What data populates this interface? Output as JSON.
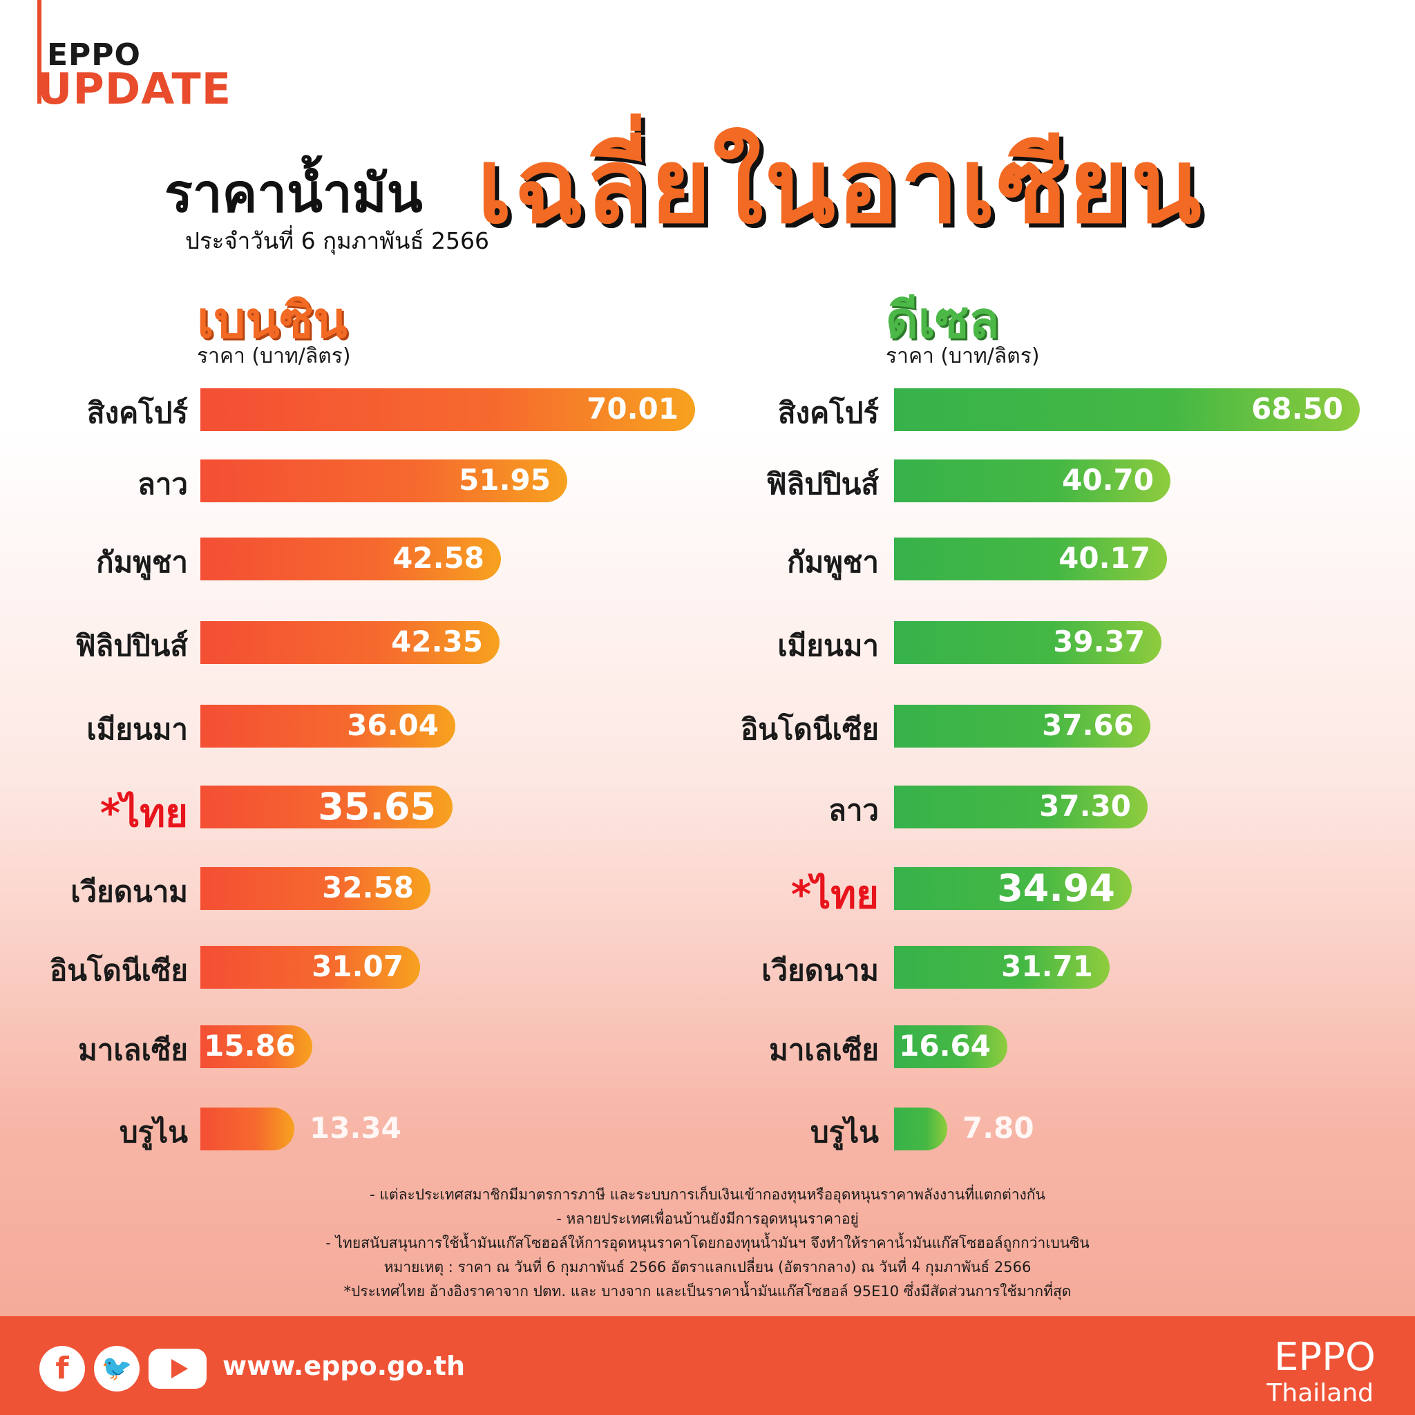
{
  "brand": {
    "eppo": "EPPO",
    "update": "UPDATE"
  },
  "header": {
    "title": "ราคาน้ำมัน",
    "date": "ประจำวันที่ 6 กุมภาพันธ์ 2566",
    "highlight": "เฉลี่ยในอาเซียน"
  },
  "colors": {
    "benzin": "#f36a24",
    "diesel": "#4cb848",
    "thai_label": "#e8141c",
    "footer": "#ef5336"
  },
  "chart_data": [
    {
      "type": "bar",
      "title": "เบนซิน",
      "ylabel": "ราคา (บาท/ลิตร)",
      "categories": [
        "สิงคโปร์",
        "ลาว",
        "กัมพูชา",
        "ฟิลิปปินส์",
        "เมียนมา",
        "*ไทย",
        "เวียดนาม",
        "อินโดนีเซีย",
        "มาเลเซีย",
        "บรูไน"
      ],
      "values": [
        70.01,
        51.95,
        42.58,
        42.35,
        36.04,
        35.65,
        32.58,
        31.07,
        15.86,
        13.34
      ],
      "labels": [
        "70.01",
        "51.95",
        "42.58",
        "42.35",
        "36.04",
        "35.65",
        "32.58",
        "31.07",
        "15.86",
        "13.34"
      ]
    },
    {
      "type": "bar",
      "title": "ดีเซล",
      "ylabel": "ราคา (บาท/ลิตร)",
      "categories": [
        "สิงคโปร์",
        "ฟิลิปปินส์",
        "กัมพูชา",
        "เมียนมา",
        "อินโดนีเซีย",
        "ลาว",
        "*ไทย",
        "เวียดนาม",
        "มาเลเซีย",
        "บรูไน"
      ],
      "values": [
        68.5,
        40.7,
        40.17,
        39.37,
        37.66,
        37.3,
        34.94,
        31.71,
        16.64,
        7.8
      ],
      "labels": [
        "68.50",
        "40.70",
        "40.17",
        "39.37",
        "37.66",
        "37.30",
        "34.94",
        "31.71",
        "16.64",
        "7.80"
      ]
    }
  ],
  "notes": [
    "- แต่ละประเทศสมาชิกมีมาตรการภาษี และระบบการเก็บเงินเข้ากองทุนหรืออุดหนุนราคาพลังงานที่แตกต่างกัน",
    "- หลายประเทศเพื่อนบ้านยังมีการอุดหนุนราคาอยู่",
    "- ไทยสนับสนุนการใช้น้ำมันแก๊สโซฮอล์ให้การอุดหนุนราคาโดยกองทุนน้ำมันฯ จึงทำให้ราคาน้ำมันแก๊สโซฮอล์ถูกกว่าเบนซิน",
    "หมายเหตุ : ราคา ณ วันที่ 6 กุมภาพันธ์ 2566 อัตราแลกเปลี่ยน (อัตรากลาง) ณ วันที่ 4 กุมภาพันธ์ 2566",
    "*ประเทศไทย อ้างอิงราคาจาก ปตท. และ บางจาก และเป็นราคาน้ำมันแก๊สโซฮอล์ 95E10 ซึ่งมีสัดส่วนการใช้มากที่สุด"
  ],
  "footer": {
    "icons": [
      "facebook-icon",
      "twitter-icon",
      "youtube-icon"
    ],
    "website": "www.eppo.go.th",
    "org": "EPPO",
    "country": "Thailand"
  }
}
